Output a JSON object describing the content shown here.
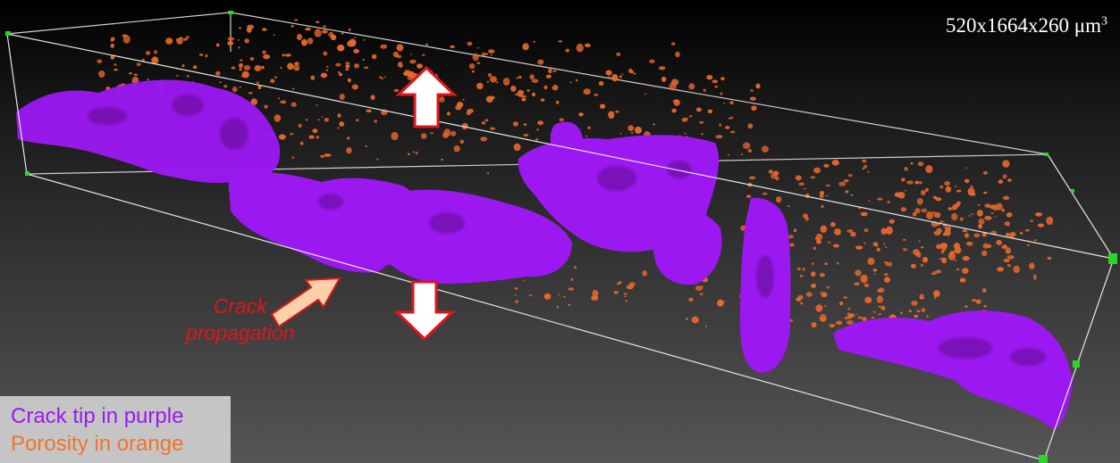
{
  "volume_dimensions": {
    "value": "520x1664x260 μm",
    "exponent": "3"
  },
  "annotation": {
    "line1": "Crack",
    "line2": "propagation"
  },
  "legend": {
    "crack": "Crack tip in purple",
    "porosity": "Porosity in orange"
  },
  "colors": {
    "crack": "#9b19f0",
    "porosity": "#e8682c",
    "arrow_fill": "#ffffff",
    "arrow_stroke": "#e0151b",
    "propagation_arrow_fill": "#fcd0a8"
  },
  "icons": {
    "load_arrows": "double-headed-vertical-arrow",
    "propagation_arrow": "diagonal-arrow-up-right"
  }
}
